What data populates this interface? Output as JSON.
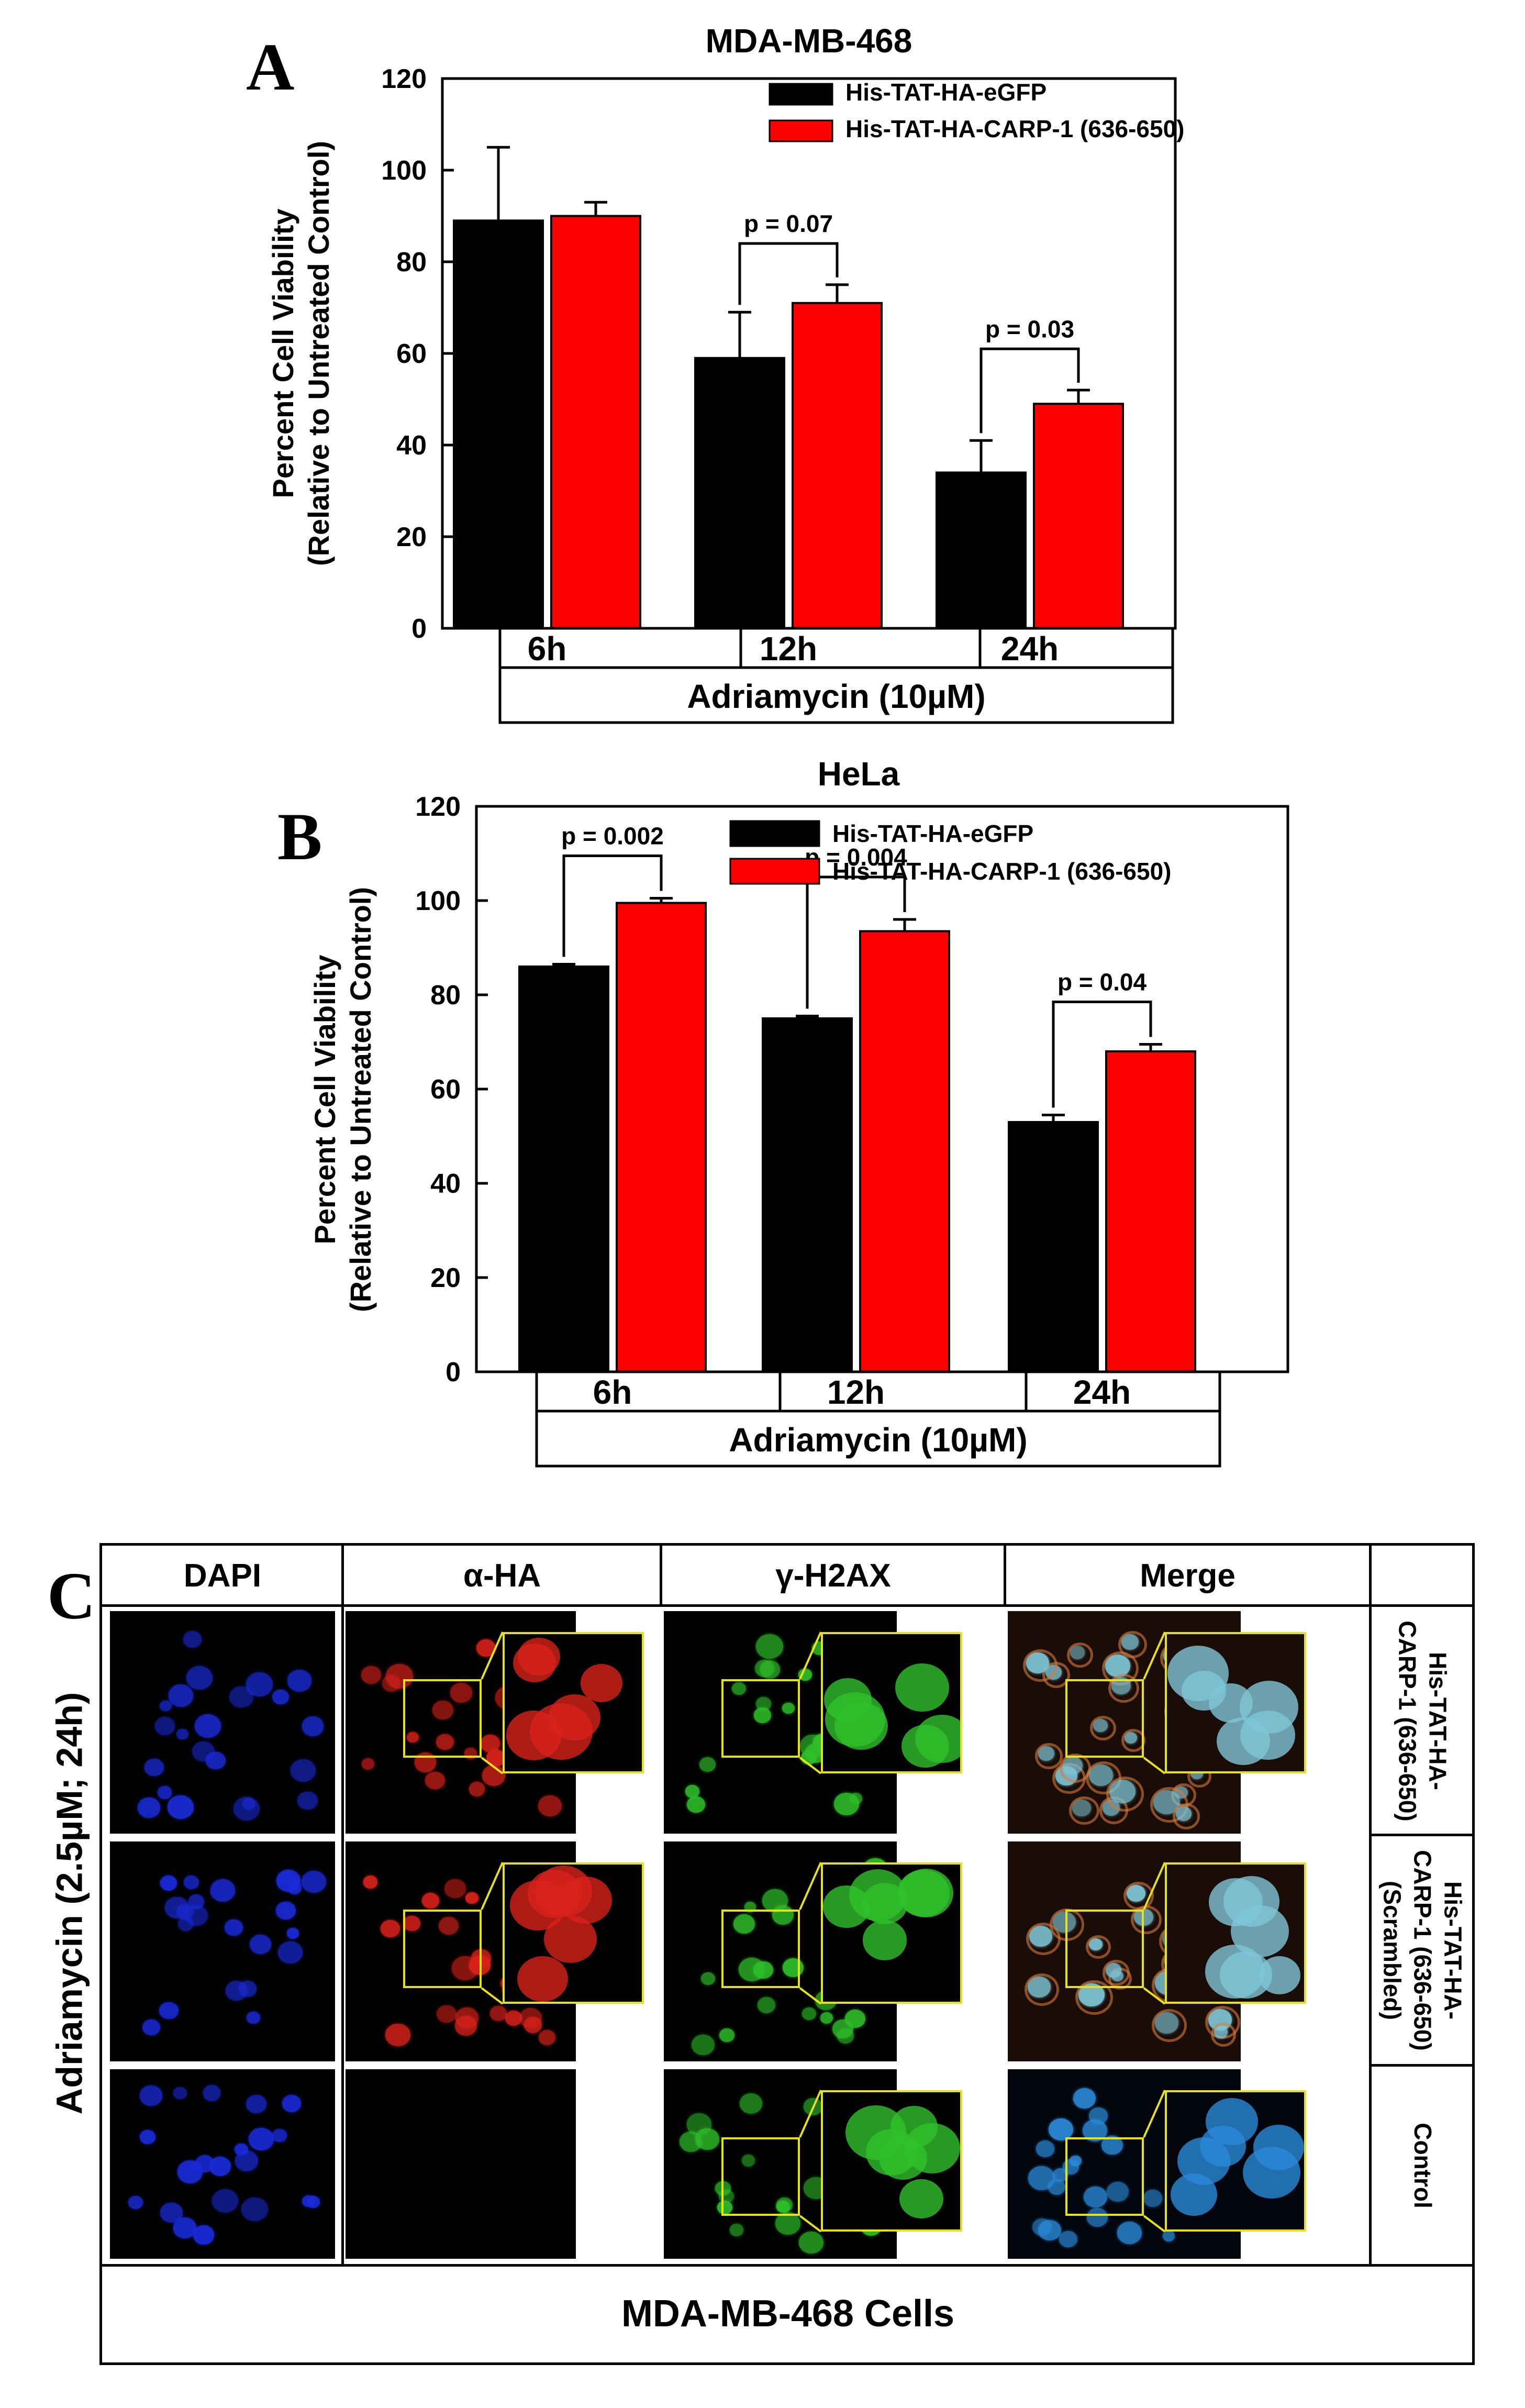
{
  "panels": {
    "A": "A",
    "B": "B",
    "C": "C"
  },
  "chart_data": [
    {
      "type": "bar",
      "panel_letter": "A",
      "title": "MDA-MB-468",
      "ylabel": [
        "Percent Cell Viability",
        "(Relative to Untreated Control)"
      ],
      "xlabel": "Adriamycin (10µM)",
      "categories": [
        "6h",
        "12h",
        "24h"
      ],
      "ylim": [
        0,
        120
      ],
      "yticks": [
        0,
        20,
        40,
        60,
        80,
        100,
        120
      ],
      "legend_position": "top-right",
      "series": [
        {
          "name": "His-TAT-HA-eGFP",
          "color": "#000000",
          "values": [
            89,
            59,
            34
          ],
          "errors": [
            16,
            10,
            7
          ]
        },
        {
          "name": "His-TAT-HA-CARP-1 (636-650)",
          "color": "#ff0000",
          "values": [
            90,
            71,
            49
          ],
          "errors": [
            3,
            4,
            3
          ]
        }
      ],
      "annotations": [
        {
          "category_index": 1,
          "text": "p = 0.07"
        },
        {
          "category_index": 2,
          "text": "p = 0.03"
        }
      ]
    },
    {
      "type": "bar",
      "panel_letter": "B",
      "title": "HeLa",
      "ylabel": [
        "Percent Cell Viability",
        "(Relative to Untreated Control)"
      ],
      "xlabel": "Adriamycin (10µM)",
      "categories": [
        "6h",
        "12h",
        "24h"
      ],
      "ylim": [
        0,
        120
      ],
      "yticks": [
        0,
        20,
        40,
        60,
        80,
        100,
        120
      ],
      "legend_position": "top-right",
      "series": [
        {
          "name": "His-TAT-HA-eGFP",
          "color": "#000000",
          "values": [
            86,
            75,
            53
          ],
          "errors": [
            0.5,
            0.5,
            1.5
          ]
        },
        {
          "name": "His-TAT-HA-CARP-1 (636-650)",
          "color": "#ff0000",
          "values": [
            99.5,
            93.5,
            68
          ],
          "errors": [
            1,
            2.5,
            1.5
          ]
        }
      ],
      "annotations": [
        {
          "category_index": 0,
          "text": "p = 0.002"
        },
        {
          "category_index": 1,
          "text": "p = 0.004"
        },
        {
          "category_index": 2,
          "text": "p = 0.04"
        }
      ]
    }
  ],
  "panel_c": {
    "side_label": "Adriamycin (2.5µM; 24h)",
    "columns": [
      "DAPI",
      "α-HA",
      "γ-H2AX",
      "Merge"
    ],
    "rows": [
      "His-TAT-HA-\nCARP-1 (636-650)",
      "His-TAT-HA-\nCARP-1 (636-650)\n(Scrambled)",
      "Control"
    ],
    "footer": "MDA-MB-468 Cells",
    "colors": {
      "dapi": "#1a2bd8",
      "ha": "#d8221a",
      "h2ax": "#2fc02a",
      "inset": "#e5e21b"
    }
  }
}
